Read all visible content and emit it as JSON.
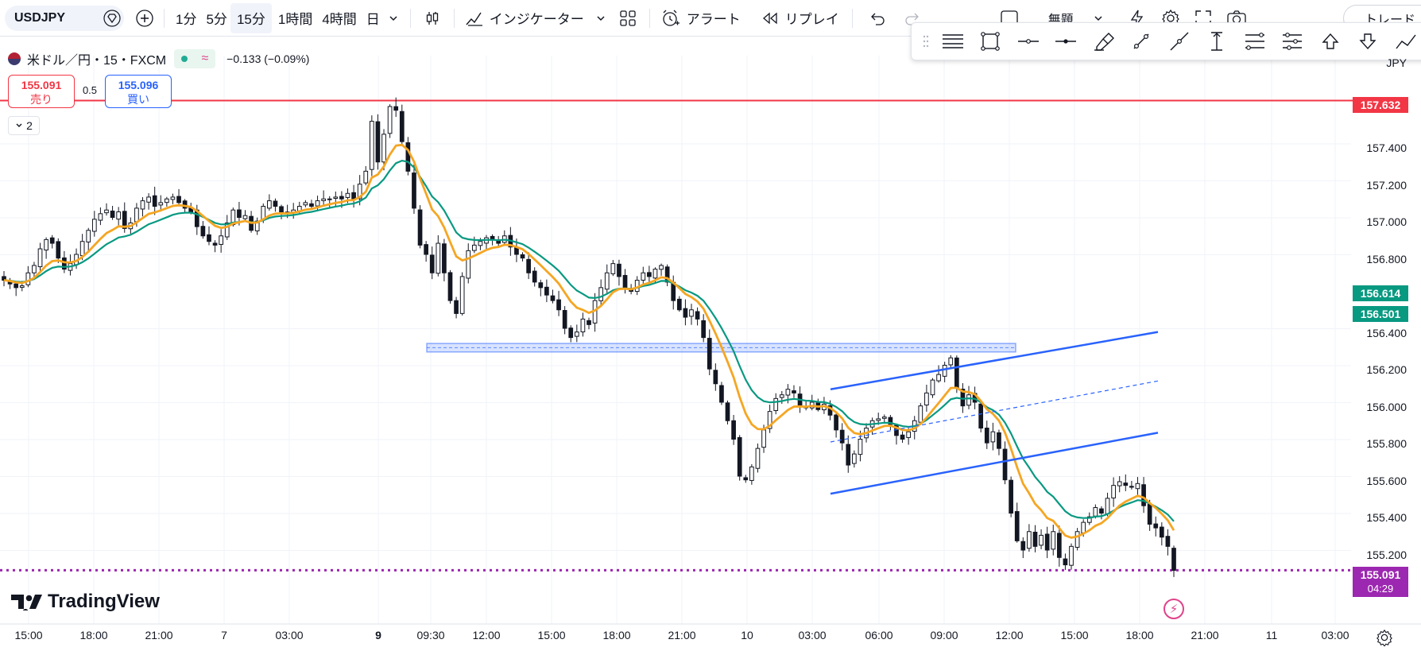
{
  "toolbar": {
    "symbol": "USDJPY",
    "intervals": [
      "1分",
      "5分",
      "15分",
      "1時間",
      "4時間",
      "日"
    ],
    "active_interval": "15分",
    "indicators_label": "インジケーター",
    "alert_label": "アラート",
    "replay_label": "リプレイ",
    "layout_name": "無題",
    "trade_label": "トレード"
  },
  "legend": {
    "title": "米ドル／円・15・FXCM",
    "change": "−0.133 (−0.09%)",
    "sell_price": "155.091",
    "sell_label": "売り",
    "spread": "0.5",
    "buy_price": "155.096",
    "buy_label": "買い",
    "collapse_count": "2"
  },
  "price_axis": {
    "currency": "JPY",
    "ticks": [
      "157.400",
      "157.200",
      "157.000",
      "156.800",
      "156.400",
      "156.200",
      "156.000",
      "155.800",
      "155.600",
      "155.400",
      "155.200"
    ],
    "high_line_badge": "157.632",
    "ma_slow_badge": "156.614",
    "ma_fast_badge": "156.501",
    "last_price_badge": "155.091",
    "countdown": "04:29"
  },
  "time_axis": {
    "labels": [
      "15:00",
      "18:00",
      "21:00",
      "7",
      "03:00",
      "9",
      "09:30",
      "12:00",
      "15:00",
      "18:00",
      "21:00",
      "10",
      "03:00",
      "06:00",
      "09:00",
      "12:00",
      "15:00",
      "18:00",
      "21:00",
      "11",
      "03:00"
    ]
  },
  "colors": {
    "up_body": "#ffffff",
    "candle_outline": "#131722",
    "down_body": "#131722",
    "ma_fast": "#f5a623",
    "ma_slow": "#089981",
    "channel": "#2962ff",
    "high_line": "#f23645",
    "last_price_line": "#9c27b0"
  },
  "branding": {
    "logo_text": "TradingView"
  },
  "chart_data": {
    "type": "candlestick",
    "symbol": "USDJPY",
    "timeframe": "15",
    "ylim": [
      155.03,
      157.78
    ],
    "horizontal_lines": [
      {
        "price": 157.632,
        "color": "#f23645",
        "style": "solid"
      },
      {
        "price": 155.091,
        "color": "#9c27b0",
        "style": "dotted"
      }
    ],
    "support_zone": {
      "top": 156.318,
      "bottom": 156.272
    },
    "channel": {
      "upper": [
        156.07,
        156.38
      ],
      "lower": [
        155.505,
        155.835
      ],
      "mid": [
        155.785,
        156.115
      ]
    },
    "close_path": [
      156.66,
      156.64,
      156.62,
      156.63,
      156.7,
      156.74,
      156.83,
      156.88,
      156.86,
      156.78,
      156.72,
      156.75,
      156.8,
      156.87,
      156.93,
      156.99,
      157.02,
      157.04,
      157.0,
      157.03,
      156.94,
      156.97,
      157.05,
      157.09,
      157.11,
      157.06,
      157.08,
      157.1,
      157.11,
      157.08,
      157.05,
      157.03,
      156.95,
      156.9,
      156.87,
      156.85,
      156.9,
      156.97,
      157.04,
      157.0,
      157.01,
      156.93,
      156.98,
      157.06,
      157.09,
      157.06,
      157.03,
      157.02,
      157.04,
      157.06,
      157.08,
      157.06,
      157.09,
      157.1,
      157.1,
      157.11,
      157.1,
      157.13,
      157.1,
      157.18,
      157.25,
      157.52,
      157.3,
      157.45,
      157.6,
      157.58,
      157.41,
      157.25,
      157.05,
      156.85,
      156.8,
      156.7,
      156.86,
      156.7,
      156.55,
      156.48,
      156.68,
      156.82,
      156.85,
      156.87,
      156.89,
      156.88,
      156.86,
      156.9,
      156.84,
      156.8,
      156.78,
      156.7,
      156.65,
      156.62,
      156.58,
      156.55,
      156.5,
      156.4,
      156.35,
      156.38,
      156.45,
      156.42,
      156.55,
      156.62,
      156.7,
      156.75,
      156.68,
      156.62,
      156.6,
      156.66,
      156.7,
      156.68,
      156.72,
      156.74,
      156.65,
      156.55,
      156.5,
      156.46,
      156.5,
      156.45,
      156.35,
      156.18,
      156.1,
      156.0,
      155.9,
      155.8,
      155.6,
      155.58,
      155.65,
      155.75,
      155.85,
      155.95,
      156.02,
      156.04,
      156.07,
      156.05,
      155.98,
      155.97,
      156.0,
      155.96,
      155.99,
      155.93,
      155.85,
      155.78,
      155.66,
      155.72,
      155.8,
      155.86,
      155.9,
      155.91,
      155.92,
      155.88,
      155.82,
      155.8,
      155.84,
      155.9,
      155.98,
      156.05,
      156.12,
      156.15,
      156.2,
      156.24,
      156.08,
      155.98,
      156.04,
      156.0,
      155.86,
      155.78,
      155.84,
      155.75,
      155.58,
      155.4,
      155.25,
      155.2,
      155.3,
      155.22,
      155.28,
      155.2,
      155.3,
      155.16,
      155.12,
      155.22,
      155.3,
      155.35,
      155.38,
      155.43,
      155.4,
      155.48,
      155.55,
      155.57,
      155.55,
      155.54,
      155.56,
      155.44,
      155.34,
      155.32,
      155.27,
      155.22,
      155.09
    ]
  }
}
